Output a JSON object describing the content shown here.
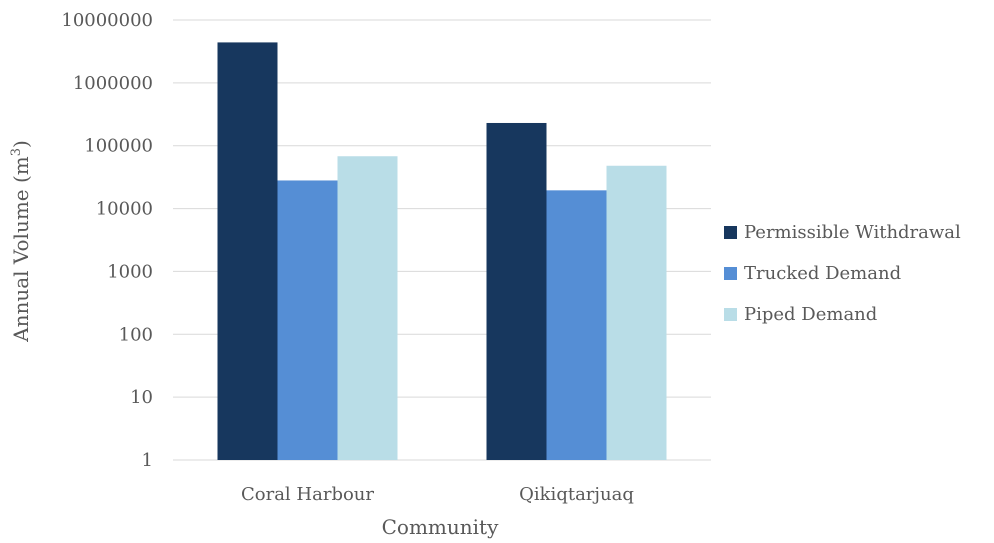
{
  "chart_data": {
    "type": "bar",
    "title": "",
    "xlabel": "Community",
    "ylabel": "Annual Volume (m",
    "ylabel_superscript": "3",
    "ylabel_suffix": ")",
    "yscale": "log",
    "ylim": [
      1,
      10000000
    ],
    "ytick_labels": [
      "1",
      "10",
      "100",
      "1000",
      "10000",
      "100000",
      "1000000",
      "10000000"
    ],
    "ytick_values": [
      1,
      10,
      100,
      1000,
      10000,
      100000,
      1000000,
      10000000
    ],
    "grid": true,
    "legend_position": "right",
    "categories": [
      "Coral Harbour",
      "Qikiqtarjuaq"
    ],
    "series": [
      {
        "name": "Permissible Withdrawal",
        "color": "#17375e",
        "values": [
          4400000,
          230000
        ]
      },
      {
        "name": "Trucked Demand",
        "color": "#558ed5",
        "values": [
          28000,
          19500
        ]
      },
      {
        "name": "Piped Demand",
        "color": "#b9dde7",
        "values": [
          68000,
          48000
        ]
      }
    ]
  }
}
